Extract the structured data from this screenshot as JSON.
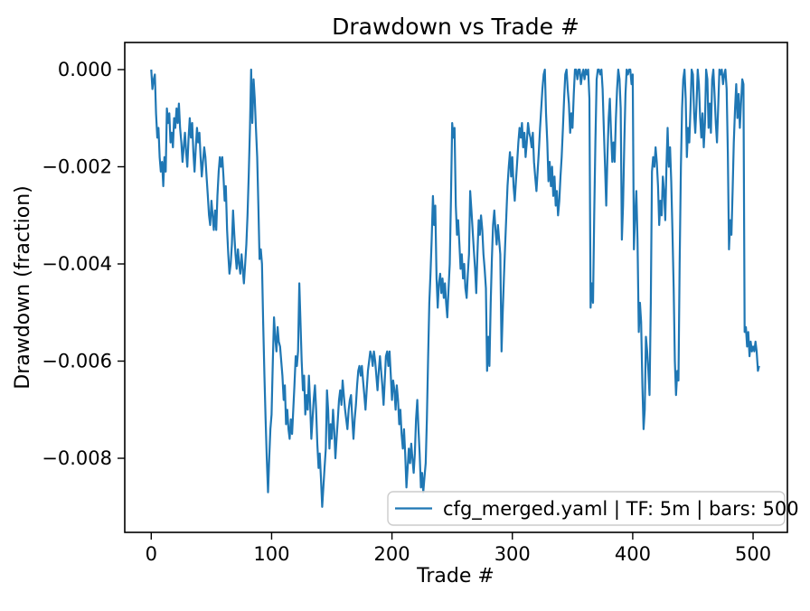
{
  "figure": {
    "title": "Drawdown vs Trade #",
    "xlabel": "Trade #",
    "ylabel": "Drawdown (fraction)",
    "legend": {
      "label": "cfg_merged.yaml | TF: 5m | bars: 500",
      "line_color": "#1f77b4",
      "border_color": "#cccccc",
      "position": "lower right"
    },
    "x_tick_labels": [
      "0",
      "100",
      "200",
      "300",
      "400",
      "500"
    ],
    "y_tick_labels": [
      "0.000",
      "−0.002",
      "−0.004",
      "−0.006",
      "−0.008"
    ]
  },
  "chart_data": {
    "type": "line",
    "title": "Drawdown vs Trade #",
    "xlabel": "Trade #",
    "ylabel": "Drawdown (fraction)",
    "legend": [
      "cfg_merged.yaml | TF: 5m | bars: 500"
    ],
    "legend_position": "lower right",
    "line_color": "#1f77b4",
    "grid": false,
    "x_tick_values": [
      0,
      100,
      200,
      300,
      400,
      500
    ],
    "y_tick_values": [
      0,
      -0.002,
      -0.004,
      -0.006,
      -0.008
    ],
    "xlim": [
      -22,
      528.5
    ],
    "ylim": [
      -0.009525,
      0.000558
    ],
    "x_note": "x = trade index; values[i] is drawdown fraction at trade i",
    "values": [
      0.0,
      -0.0004,
      -0.0002,
      -0.0001,
      -0.0009,
      -0.0014,
      -0.0012,
      -0.0018,
      -0.0021,
      -0.0019,
      -0.0024,
      -0.0018,
      -0.0021,
      -0.0008,
      -0.0011,
      -0.0009,
      -0.0015,
      -0.0013,
      -0.0016,
      -0.001,
      -0.0012,
      -0.0008,
      -0.0011,
      -0.0007,
      -0.0012,
      -0.0015,
      -0.0019,
      -0.0016,
      -0.0013,
      -0.0017,
      -0.002,
      -0.0014,
      -0.001,
      -0.0014,
      -0.0011,
      -0.0017,
      -0.0021,
      -0.0016,
      -0.0012,
      -0.0015,
      -0.0013,
      -0.0018,
      -0.0022,
      -0.0019,
      -0.0016,
      -0.0018,
      -0.0022,
      -0.0026,
      -0.003,
      -0.0032,
      -0.0027,
      -0.003,
      -0.0033,
      -0.0029,
      -0.0033,
      -0.0026,
      -0.0021,
      -0.0018,
      -0.002,
      -0.0018,
      -0.0022,
      -0.0027,
      -0.0024,
      -0.0033,
      -0.0038,
      -0.0042,
      -0.004,
      -0.0036,
      -0.0029,
      -0.0034,
      -0.0038,
      -0.0041,
      -0.0037,
      -0.004,
      -0.0042,
      -0.0038,
      -0.0041,
      -0.0044,
      -0.004,
      -0.0036,
      -0.003,
      -0.0022,
      -0.0012,
      0.0,
      -0.0011,
      -0.0002,
      -0.0006,
      -0.0012,
      -0.0018,
      -0.0028,
      -0.0039,
      -0.0037,
      -0.004,
      -0.0052,
      -0.0063,
      -0.0072,
      -0.008,
      -0.0087,
      -0.008,
      -0.0074,
      -0.0071,
      -0.006,
      -0.0051,
      -0.0055,
      -0.0058,
      -0.0053,
      -0.0056,
      -0.0057,
      -0.006,
      -0.0063,
      -0.0068,
      -0.0065,
      -0.0073,
      -0.007,
      -0.0074,
      -0.0076,
      -0.0072,
      -0.0075,
      -0.007,
      -0.0065,
      -0.0059,
      -0.0061,
      -0.0058,
      -0.0044,
      -0.0052,
      -0.006,
      -0.0066,
      -0.0063,
      -0.0071,
      -0.0067,
      -0.007,
      -0.0063,
      -0.0069,
      -0.0076,
      -0.0072,
      -0.0068,
      -0.0065,
      -0.007,
      -0.0077,
      -0.0082,
      -0.0079,
      -0.0084,
      -0.009,
      -0.0086,
      -0.0082,
      -0.0078,
      -0.0066,
      -0.007,
      -0.0078,
      -0.0073,
      -0.0076,
      -0.007,
      -0.0074,
      -0.008,
      -0.0076,
      -0.0072,
      -0.0068,
      -0.0066,
      -0.0069,
      -0.0064,
      -0.0067,
      -0.007,
      -0.0072,
      -0.0074,
      -0.007,
      -0.0068,
      -0.0067,
      -0.0072,
      -0.0076,
      -0.0072,
      -0.0069,
      -0.0065,
      -0.0062,
      -0.0061,
      -0.0063,
      -0.0061,
      -0.0064,
      -0.0067,
      -0.007,
      -0.0066,
      -0.0062,
      -0.006,
      -0.0058,
      -0.0059,
      -0.0061,
      -0.0058,
      -0.006,
      -0.0063,
      -0.0066,
      -0.0062,
      -0.0059,
      -0.0062,
      -0.0065,
      -0.0069,
      -0.0064,
      -0.0059,
      -0.0058,
      -0.0061,
      -0.0058,
      -0.0063,
      -0.0068,
      -0.0064,
      -0.0066,
      -0.007,
      -0.0065,
      -0.0068,
      -0.0073,
      -0.007,
      -0.0075,
      -0.0078,
      -0.0074,
      -0.0079,
      -0.0086,
      -0.0082,
      -0.0078,
      -0.0081,
      -0.0077,
      -0.008,
      -0.0083,
      -0.0079,
      -0.0072,
      -0.0068,
      -0.0074,
      -0.0079,
      -0.0086,
      -0.0083,
      -0.0087,
      -0.0084,
      -0.0081,
      -0.0072,
      -0.006,
      -0.0048,
      -0.0042,
      -0.0035,
      -0.0026,
      -0.0032,
      -0.0028,
      -0.0043,
      -0.0049,
      -0.0044,
      -0.0042,
      -0.0046,
      -0.0043,
      -0.0047,
      -0.0044,
      -0.0048,
      -0.0051,
      -0.0045,
      -0.004,
      -0.0027,
      -0.0011,
      -0.0014,
      -0.0012,
      -0.0028,
      -0.0034,
      -0.0031,
      -0.0036,
      -0.0041,
      -0.0038,
      -0.0043,
      -0.004,
      -0.0045,
      -0.0047,
      -0.0042,
      -0.0038,
      -0.0025,
      -0.0029,
      -0.0033,
      -0.0037,
      -0.0041,
      -0.0046,
      -0.0038,
      -0.0031,
      -0.0034,
      -0.003,
      -0.0033,
      -0.0038,
      -0.0041,
      -0.0045,
      -0.0062,
      -0.0055,
      -0.0061,
      -0.0048,
      -0.0039,
      -0.0032,
      -0.0029,
      -0.0033,
      -0.0036,
      -0.0032,
      -0.0035,
      -0.0038,
      -0.0058,
      -0.005,
      -0.0043,
      -0.0036,
      -0.003,
      -0.0024,
      -0.002,
      -0.0017,
      -0.0022,
      -0.0018,
      -0.0024,
      -0.0027,
      -0.0023,
      -0.0019,
      -0.0015,
      -0.0012,
      -0.0014,
      -0.0011,
      -0.0016,
      -0.0013,
      -0.0018,
      -0.0015,
      -0.0011,
      -0.0013,
      -0.0014,
      -0.0016,
      -0.0013,
      -0.0019,
      -0.0022,
      -0.0025,
      -0.0021,
      -0.0017,
      -0.0012,
      -0.0008,
      -0.0004,
      -0.0001,
      0.0,
      -0.0009,
      -0.0015,
      -0.0023,
      -0.0019,
      -0.0024,
      -0.002,
      -0.0026,
      -0.0022,
      -0.0028,
      -0.0025,
      -0.003,
      -0.0027,
      -0.0022,
      -0.0018,
      -0.0012,
      -0.0006,
      -0.0001,
      0.0,
      -0.0004,
      -0.0007,
      -0.0013,
      -0.0009,
      -0.0012,
      -0.0005,
      0.0,
      0.0,
      -0.0002,
      0.0,
      0.0,
      -0.0003,
      -0.0001,
      0.0,
      -0.0002,
      0.0,
      -0.0001,
      0.0,
      -0.0006,
      -0.0049,
      -0.0044,
      -0.0048,
      -0.003,
      -0.0015,
      -0.0002,
      0.0,
      0.0,
      -0.0001,
      0.0,
      -0.0004,
      -0.0012,
      -0.002,
      -0.0028,
      -0.0018,
      -0.001,
      -0.0006,
      -0.0013,
      -0.0019,
      -0.0015,
      -0.0019,
      -0.001,
      -0.0004,
      0.0,
      -0.0002,
      -0.0008,
      -0.0035,
      -0.0028,
      -0.0015,
      -0.0005,
      0.0,
      -0.0001,
      0.0,
      0.0,
      -0.0003,
      -0.0001,
      -0.0037,
      -0.003,
      -0.0025,
      -0.0035,
      -0.0054,
      -0.0048,
      -0.0052,
      -0.0065,
      -0.0074,
      -0.007,
      -0.0055,
      -0.0058,
      -0.0062,
      -0.0067,
      -0.0048,
      -0.0021,
      -0.0018,
      -0.002,
      -0.0016,
      -0.0019,
      -0.0024,
      -0.0032,
      -0.0027,
      -0.003,
      -0.0022,
      -0.0025,
      -0.0031,
      -0.002,
      -0.0012,
      -0.002,
      -0.0016,
      -0.0023,
      -0.0033,
      -0.0045,
      -0.006,
      -0.0067,
      -0.0062,
      -0.0064,
      -0.004,
      -0.002,
      -0.0008,
      -0.0002,
      0.0,
      -0.0006,
      -0.0018,
      -0.0012,
      -0.0015,
      -0.0008,
      0.0,
      -0.0001,
      -0.0009,
      -0.0013,
      -0.0007,
      0.0,
      -0.0003,
      -0.001,
      -0.0014,
      -0.0009,
      -0.0016,
      -0.0011,
      0.0,
      -0.0002,
      -0.0012,
      -0.0007,
      -0.0013,
      -0.0002,
      0.0,
      -0.0005,
      -0.0011,
      -0.0015,
      -0.0008,
      0.0,
      -0.0001,
      0.0,
      -0.0003,
      -0.0001,
      0.0,
      -0.0004,
      -0.0017,
      -0.0037,
      -0.0031,
      -0.0034,
      -0.0025,
      -0.0015,
      -0.0008,
      -0.0003,
      -0.001,
      -0.0005,
      -0.0012,
      -0.0007,
      -0.0002,
      -0.0003,
      -0.0054,
      -0.0053,
      -0.0057,
      -0.0054,
      -0.0059,
      -0.0056,
      -0.0058,
      -0.0057,
      -0.0058,
      -0.0056,
      -0.0058,
      -0.0062,
      -0.0061
    ]
  }
}
